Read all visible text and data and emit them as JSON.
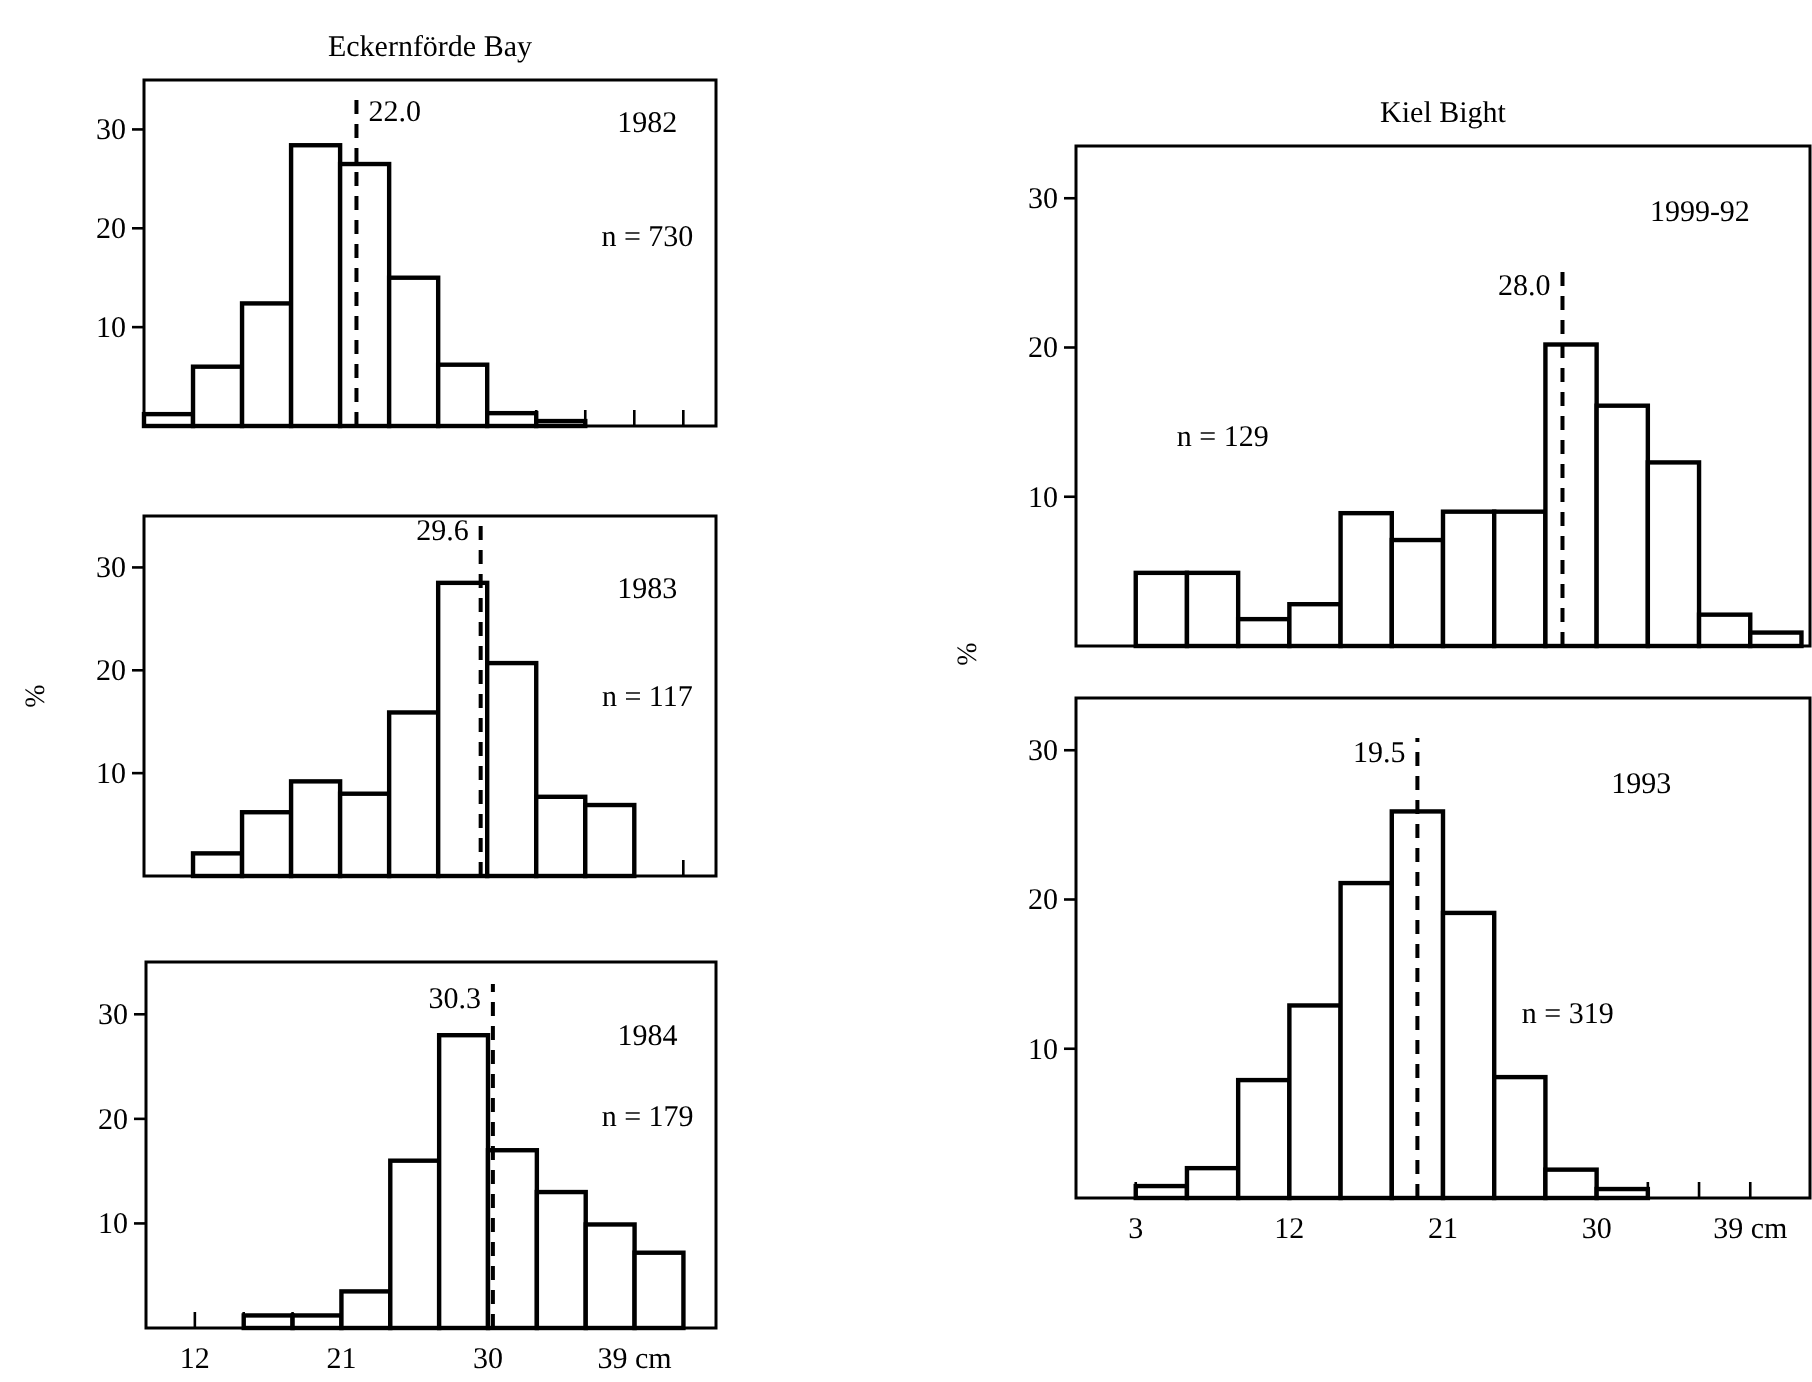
{
  "chart_data": [
    {
      "type": "histogram",
      "title": "Eckernförde Bay",
      "bins": [
        9,
        12,
        15,
        18,
        21,
        24,
        27,
        30,
        33,
        36
      ],
      "values": [
        1.2,
        6,
        12.4,
        28.4,
        26.5,
        15,
        6.2,
        1.3,
        0.5
      ],
      "color": "#000000",
      "xlim": [
        9,
        44
      ],
      "ylim": [
        0,
        35
      ],
      "yticks": [
        10,
        20,
        30
      ],
      "xticks": [
        {
          "value": 12,
          "label": null
        },
        {
          "value": 15,
          "label": null
        },
        {
          "value": 18,
          "label": null
        },
        {
          "value": 21,
          "label": null
        },
        {
          "value": 24,
          "label": null
        },
        {
          "value": 27,
          "label": null
        },
        {
          "value": 30,
          "label": null
        },
        {
          "value": 33,
          "label": null
        },
        {
          "value": 36,
          "label": null
        },
        {
          "value": 39,
          "label": null
        },
        {
          "value": 42,
          "label": null
        }
      ],
      "tick_labels": "y",
      "ref_lines": [
        {
          "axis": "x",
          "value": 22.0,
          "label": "22.0",
          "line_style": "dashed"
        }
      ],
      "annotations": [
        "1982",
        "n = 730"
      ]
    },
    {
      "type": "histogram",
      "ylabel": "%",
      "bins": [
        12,
        15,
        18,
        21,
        24,
        27,
        30,
        33,
        36,
        39
      ],
      "values": [
        2.2,
        6.2,
        9.2,
        8,
        15.9,
        28.5,
        20.7,
        7.7,
        6.9
      ],
      "color": "#000000",
      "xlim": [
        9,
        44
      ],
      "ylim": [
        0,
        35
      ],
      "yticks": [
        10,
        20,
        30
      ],
      "xticks": [
        {
          "value": 12,
          "label": null
        },
        {
          "value": 15,
          "label": null
        },
        {
          "value": 18,
          "label": null
        },
        {
          "value": 21,
          "label": null
        },
        {
          "value": 24,
          "label": null
        },
        {
          "value": 27,
          "label": null
        },
        {
          "value": 30,
          "label": null
        },
        {
          "value": 33,
          "label": null
        },
        {
          "value": 36,
          "label": null
        },
        {
          "value": 39,
          "label": null
        },
        {
          "value": 42,
          "label": null
        }
      ],
      "tick_labels": "y",
      "ref_lines": [
        {
          "axis": "x",
          "value": 29.6,
          "label": "29.6",
          "line_style": "dashed"
        }
      ],
      "annotations": [
        "1983",
        "n = 117"
      ]
    },
    {
      "type": "histogram",
      "bins": [
        15,
        18,
        21,
        24,
        27,
        30,
        33,
        36,
        39,
        42
      ],
      "values": [
        1.2,
        1.2,
        3.5,
        16,
        28,
        17,
        13,
        9.9,
        7.2
      ],
      "color": "#000000",
      "xlim": [
        9,
        44
      ],
      "ylim": [
        0,
        35
      ],
      "yticks": [
        10,
        20,
        30
      ],
      "xticks": [
        12,
        {
          "value": 15,
          "label": null
        },
        {
          "value": 18,
          "label": null
        },
        21,
        {
          "value": 24,
          "label": null
        },
        {
          "value": 27,
          "label": null
        },
        30,
        {
          "value": 33,
          "label": null
        },
        {
          "value": 36,
          "label": null
        },
        {
          "value": 39,
          "label": "39 cm"
        }
      ],
      "ref_lines": [
        {
          "axis": "x",
          "value": 30.3,
          "label": "30.3",
          "line_style": "dashed"
        }
      ],
      "annotations": [
        "1984",
        "n = 179"
      ]
    },
    {
      "type": "histogram",
      "title": "Kiel Bight",
      "bins": [
        3,
        6,
        9,
        12,
        15,
        18,
        21,
        24,
        27,
        30,
        33,
        36,
        39,
        42
      ],
      "values": [
        4.9,
        4.9,
        1.8,
        2.8,
        8.9,
        7.1,
        9,
        9,
        20.2,
        16.1,
        12.3,
        2.1,
        0.9
      ],
      "color": "#000000",
      "xlim": [
        -0.5,
        42.5
      ],
      "ylim": [
        0,
        33.5
      ],
      "yticks": [
        10,
        20,
        30
      ],
      "xticks": [
        {
          "value": 6,
          "label": null
        },
        {
          "value": 9,
          "label": null
        },
        {
          "value": 12,
          "label": null
        },
        {
          "value": 15,
          "label": null
        },
        {
          "value": 18,
          "label": null
        },
        {
          "value": 21,
          "label": null
        },
        {
          "value": 24,
          "label": null
        },
        {
          "value": 27,
          "label": null
        },
        {
          "value": 30,
          "label": null
        },
        {
          "value": 33,
          "label": null
        },
        {
          "value": 36,
          "label": null
        },
        {
          "value": 39,
          "label": null
        }
      ],
      "tick_labels": "y",
      "ref_lines": [
        {
          "axis": "x",
          "value": 28.0,
          "label": "28.0",
          "line_style": "dashed"
        }
      ],
      "annotations": [
        "1999-92",
        "n = 129"
      ]
    },
    {
      "type": "histogram",
      "ylabel": "%",
      "bins": [
        3,
        6,
        9,
        12,
        15,
        18,
        21,
        24,
        27,
        30,
        33
      ],
      "values": [
        0.8,
        2,
        7.9,
        12.9,
        21.1,
        25.9,
        19.1,
        8.1,
        1.9,
        0.6
      ],
      "color": "#000000",
      "xlim": [
        -0.5,
        42.5
      ],
      "ylim": [
        0,
        33.5
      ],
      "yticks": [
        10,
        20,
        30
      ],
      "xticks": [
        3,
        {
          "value": 6,
          "label": null
        },
        {
          "value": 9,
          "label": null
        },
        12,
        {
          "value": 15,
          "label": null
        },
        {
          "value": 18,
          "label": null
        },
        21,
        {
          "value": 24,
          "label": null
        },
        {
          "value": 27,
          "label": null
        },
        30,
        {
          "value": 33,
          "label": null
        },
        {
          "value": 36,
          "label": null
        },
        {
          "value": 39,
          "label": "39 cm"
        }
      ],
      "ref_lines": [
        {
          "axis": "x",
          "value": 19.5,
          "label": "19.5",
          "line_style": "dashed"
        }
      ],
      "annotations": [
        "1993",
        "n = 319"
      ]
    }
  ]
}
